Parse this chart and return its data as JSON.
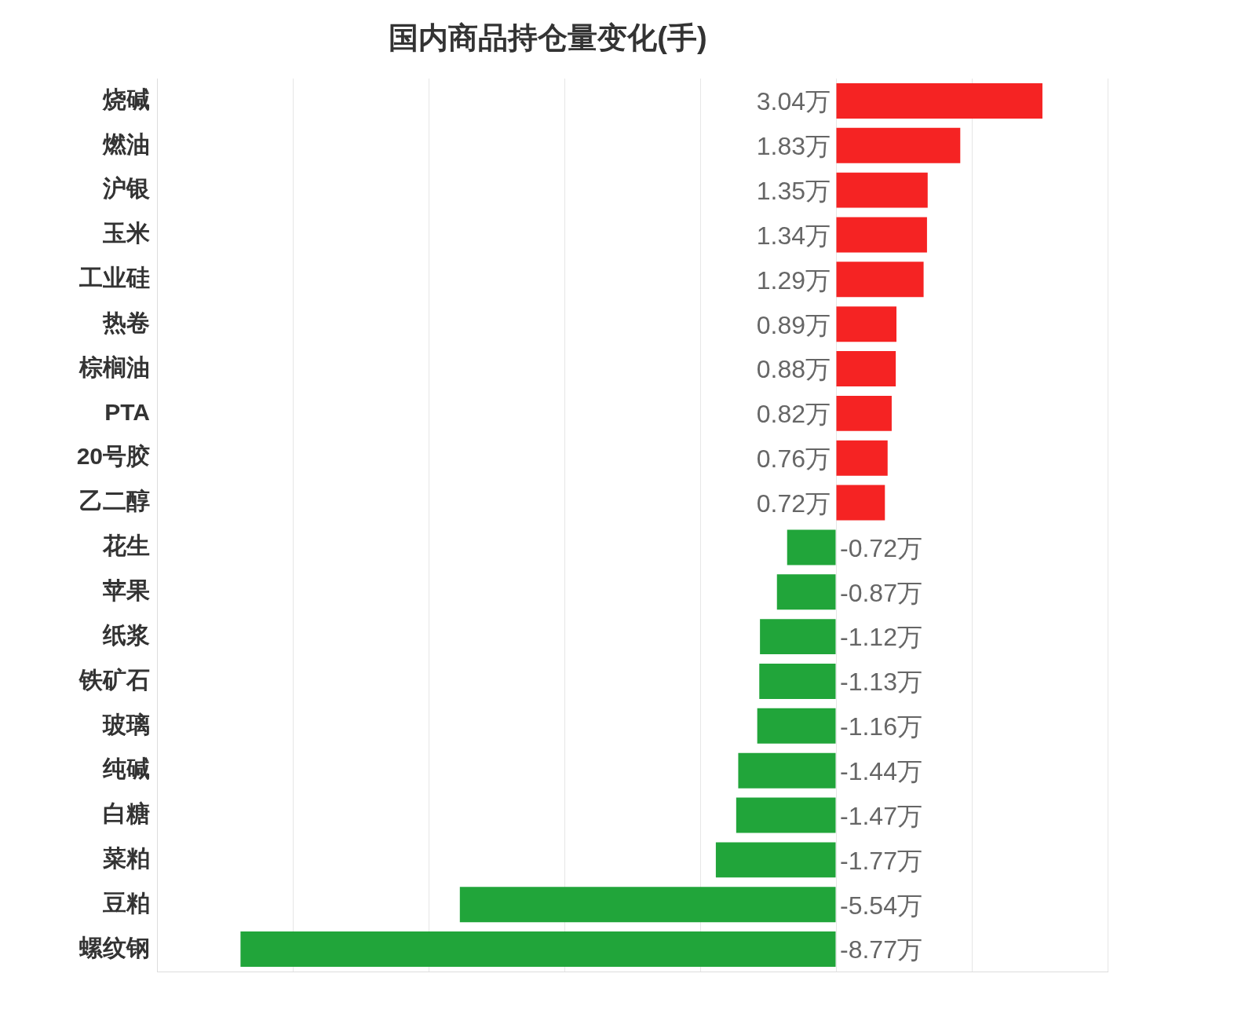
{
  "chart_data": {
    "type": "bar",
    "orientation": "horizontal",
    "title": "国内商品持仓量变化(手)",
    "categories": [
      "烧碱",
      "燃油",
      "沪银",
      "玉米",
      "工业硅",
      "热卷",
      "棕榈油",
      "PTA",
      "20号胶",
      "乙二醇",
      "花生",
      "苹果",
      "纸浆",
      "铁矿石",
      "玻璃",
      "纯碱",
      "白糖",
      "菜粕",
      "豆粕",
      "螺纹钢"
    ],
    "values": [
      3.04,
      1.83,
      1.35,
      1.34,
      1.29,
      0.89,
      0.88,
      0.82,
      0.76,
      0.72,
      -0.72,
      -0.87,
      -1.12,
      -1.13,
      -1.16,
      -1.44,
      -1.47,
      -1.77,
      -5.54,
      -8.77
    ],
    "value_labels": [
      "3.04万",
      "1.83万",
      "1.35万",
      "1.34万",
      "1.29万",
      "0.89万",
      "0.88万",
      "0.82万",
      "0.76万",
      "0.72万",
      "-0.72万",
      "-0.87万",
      "-1.12万",
      "-1.13万",
      "-1.16万",
      "-1.44万",
      "-1.47万",
      "-1.77万",
      "-5.54万",
      "-8.77万"
    ],
    "colors": [
      "#f52323",
      "#f52323",
      "#f52323",
      "#f52323",
      "#f52323",
      "#f52323",
      "#f52323",
      "#f52323",
      "#f52323",
      "#f52323",
      "#21a53a",
      "#21a53a",
      "#21a53a",
      "#21a53a",
      "#21a53a",
      "#21a53a",
      "#21a53a",
      "#21a53a",
      "#21a53a",
      "#21a53a"
    ],
    "xlim": [
      -10,
      4
    ],
    "xticks": [
      {
        "value": -10,
        "label": null
      },
      {
        "value": -8,
        "label": null
      },
      {
        "value": -6,
        "label": null
      },
      {
        "value": -4,
        "label": null
      },
      {
        "value": -2,
        "label": null
      },
      {
        "value": 0,
        "label": null
      },
      {
        "value": 2,
        "label": null
      },
      {
        "value": 4,
        "label": null
      }
    ],
    "grid": "x",
    "tick_labels": "y"
  }
}
